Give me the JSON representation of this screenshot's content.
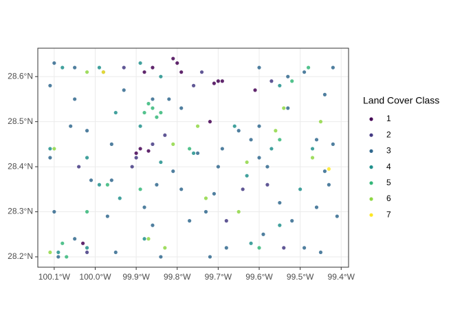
{
  "chart_data": {
    "type": "scatter",
    "grid": true,
    "legend_position": "right",
    "legend_title": "Land Cover Class",
    "xlim": [
      -100.14,
      -99.382
    ],
    "ylim": [
      28.177,
      28.663
    ],
    "xticks": [
      {
        "value": -100.1,
        "label": "100.1°W"
      },
      {
        "value": -100.0,
        "label": "100.0°W"
      },
      {
        "value": -99.9,
        "label": "99.9°W"
      },
      {
        "value": -99.8,
        "label": "99.8°W"
      },
      {
        "value": -99.7,
        "label": "99.7°W"
      },
      {
        "value": -99.6,
        "label": "99.6°W"
      },
      {
        "value": -99.5,
        "label": "99.5°W"
      },
      {
        "value": -99.4,
        "label": "99.4°W"
      }
    ],
    "yticks": [
      {
        "value": 28.2,
        "label": "28.2°N"
      },
      {
        "value": 28.3,
        "label": "28.3°N"
      },
      {
        "value": 28.4,
        "label": "28.4°N"
      },
      {
        "value": 28.5,
        "label": "28.5°N"
      },
      {
        "value": 28.6,
        "label": "28.6°N"
      }
    ],
    "series": [
      {
        "name": "1",
        "color": "#440154",
        "x": [
          -99.8,
          -99.79,
          -99.81,
          -99.7,
          -99.71,
          -99.69,
          -99.72,
          -99.89,
          -99.87,
          -99.9,
          -100.03,
          -99.61,
          -99.86,
          -99.88
        ],
        "y": [
          28.63,
          28.61,
          28.64,
          28.59,
          28.585,
          28.59,
          28.5,
          28.44,
          28.435,
          28.43,
          28.23,
          28.57,
          28.62,
          28.61
        ]
      },
      {
        "name": "2",
        "color": "#443A83",
        "x": [
          -99.93,
          -99.76,
          -99.83,
          -99.91,
          -99.9,
          -100.02,
          -100.04,
          -99.58,
          -99.54,
          -99.86,
          -99.64,
          -99.74,
          -99.68,
          -99.57
        ],
        "y": [
          28.62,
          28.58,
          28.47,
          28.4,
          28.42,
          28.21,
          28.4,
          28.36,
          28.22,
          28.45,
          28.35,
          28.61,
          28.28,
          28.59
        ]
      },
      {
        "name": "3",
        "color": "#31688E",
        "x": [
          -100.1,
          -100.05,
          -99.98,
          -99.93,
          -100.11,
          -100.05,
          -100.06,
          -100.02,
          -99.96,
          -100.11,
          -100.01,
          -99.96,
          -99.97,
          -100.1,
          -100.05,
          -100.09,
          -99.95,
          -99.84,
          -99.81,
          -99.79,
          -99.77,
          -99.73,
          -99.75,
          -99.69,
          -99.7,
          -99.71,
          -99.68,
          -99.72,
          -99.62,
          -99.6,
          -99.58,
          -99.55,
          -99.59,
          -99.52,
          -99.46,
          -99.43,
          -99.41,
          -99.45,
          -99.49,
          -99.6,
          -99.53,
          -99.49,
          -99.44,
          -99.42,
          -99.53,
          -99.46,
          -99.42,
          -99.44,
          -99.65,
          -99.6,
          -99.86,
          -99.82,
          -99.79,
          -99.85,
          -99.88,
          -99.86
        ],
        "y": [
          28.63,
          28.62,
          28.61,
          28.57,
          28.58,
          28.55,
          28.49,
          28.48,
          28.45,
          28.42,
          28.37,
          28.37,
          28.29,
          28.3,
          28.24,
          28.2,
          28.21,
          28.2,
          28.39,
          28.35,
          28.28,
          28.3,
          28.43,
          28.44,
          28.4,
          28.34,
          28.22,
          28.2,
          28.46,
          28.42,
          28.4,
          28.32,
          28.25,
          28.28,
          28.31,
          28.36,
          28.29,
          28.21,
          28.22,
          28.62,
          28.6,
          28.61,
          28.56,
          28.62,
          28.53,
          28.46,
          28.45,
          28.39,
          28.48,
          28.49,
          28.55,
          28.55,
          28.53,
          28.36,
          28.31,
          28.27
        ]
      },
      {
        "name": "4",
        "color": "#21908C",
        "x": [
          -100.08,
          -99.99,
          -99.95,
          -99.89,
          -99.84,
          -100.11,
          -100.02,
          -99.99,
          -99.94,
          -100.09,
          -100.02,
          -99.88,
          -99.76,
          -99.66,
          -99.57,
          -99.5,
          -99.55,
          -99.63,
          -99.47,
          -99.55,
          -99.62,
          -99.89,
          -99.84
        ],
        "y": [
          28.62,
          28.62,
          28.52,
          28.63,
          28.6,
          28.44,
          28.42,
          28.36,
          28.33,
          28.21,
          28.22,
          28.24,
          28.43,
          28.49,
          28.44,
          28.35,
          28.27,
          28.38,
          28.44,
          28.58,
          28.23,
          28.49,
          28.41
        ]
      },
      {
        "name": "5",
        "color": "#35B779",
        "x": [
          -99.86,
          -99.88,
          -99.85,
          -99.84,
          -99.87,
          -100.08,
          -100.07,
          -99.97,
          -99.89,
          -99.48,
          -99.6,
          -99.77,
          -99.55,
          -99.52,
          -100.02
        ],
        "y": [
          28.53,
          28.52,
          28.51,
          28.52,
          28.54,
          28.23,
          28.2,
          28.36,
          28.35,
          28.62,
          28.22,
          28.44,
          28.46,
          28.59,
          28.3
        ]
      },
      {
        "name": "6",
        "color": "#8FD744",
        "x": [
          -100.1,
          -100.02,
          -99.87,
          -99.83,
          -99.81,
          -99.73,
          -99.63,
          -99.56,
          -99.54,
          -99.47,
          -99.45,
          -99.75,
          -100.11,
          -99.65
        ],
        "y": [
          28.44,
          28.61,
          28.24,
          28.22,
          28.45,
          28.33,
          28.41,
          28.48,
          28.53,
          28.42,
          28.5,
          28.49,
          28.21,
          28.3
        ]
      },
      {
        "name": "7",
        "color": "#FDE725",
        "x": [
          -99.43,
          -99.98
        ],
        "y": [
          28.395,
          28.61
        ]
      }
    ]
  }
}
